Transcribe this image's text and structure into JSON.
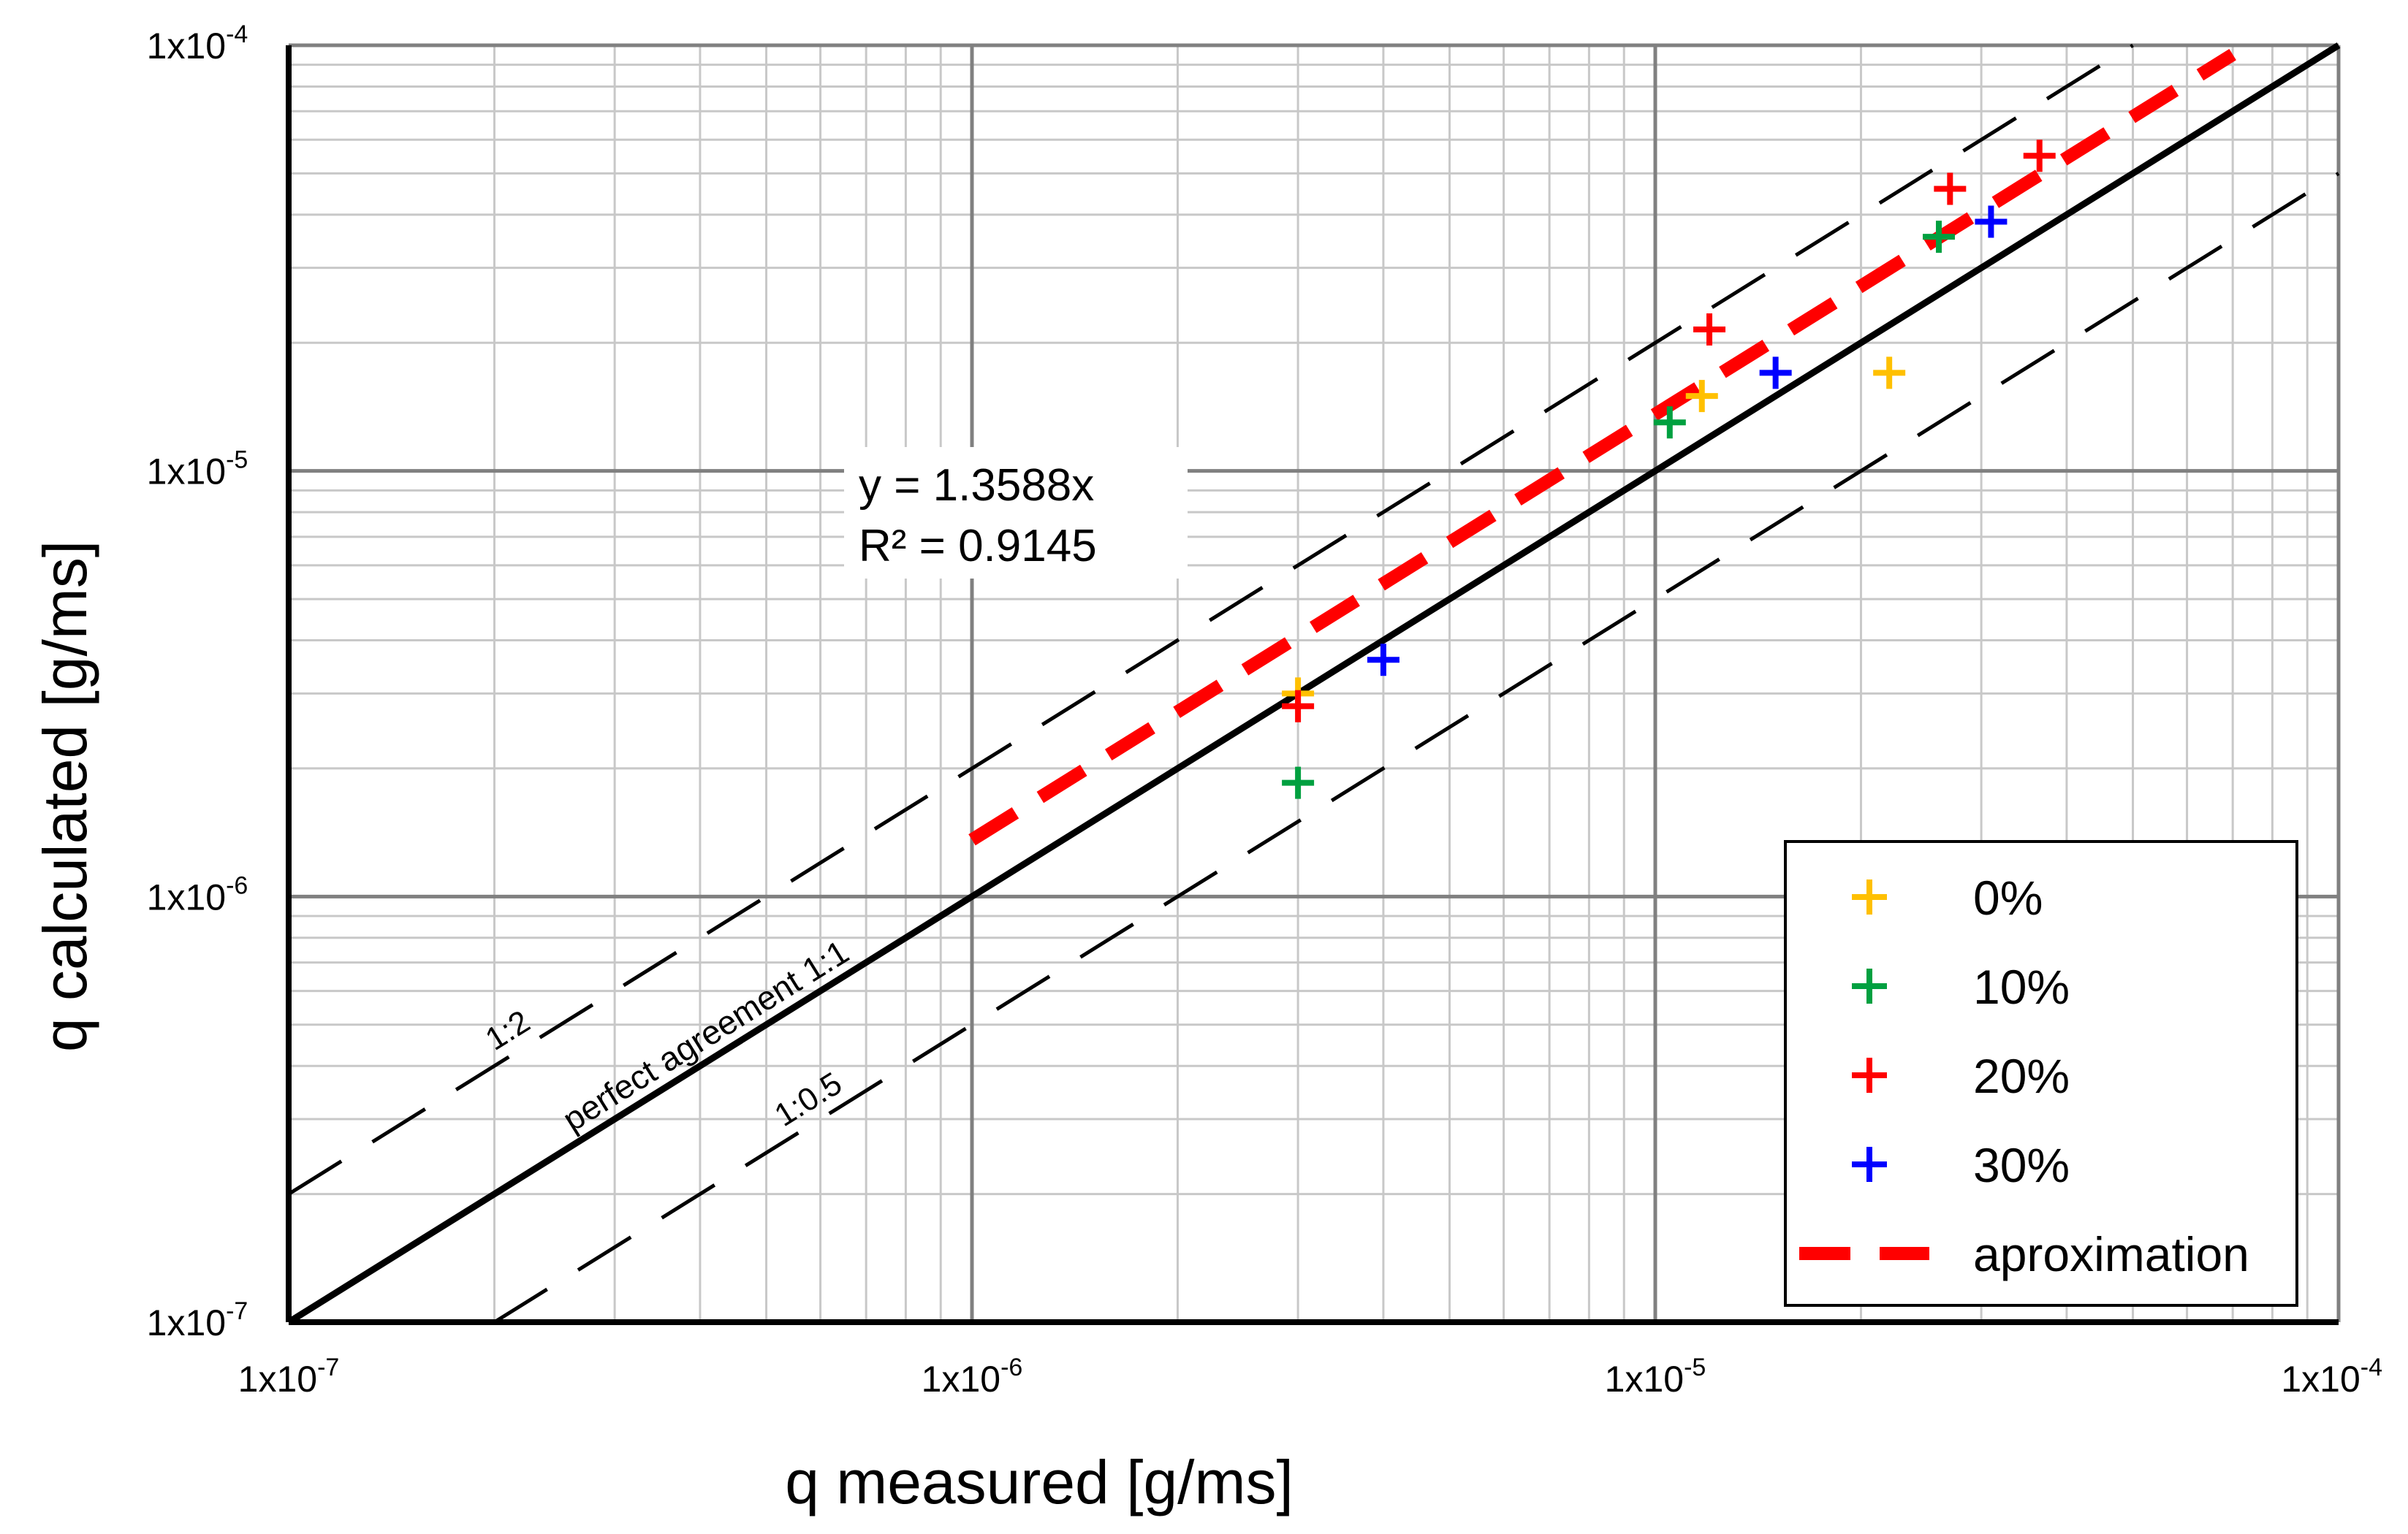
{
  "chart_data": {
    "type": "scatter",
    "xscale": "log",
    "yscale": "log",
    "xlim": [
      1e-07,
      0.0001
    ],
    "ylim": [
      1e-07,
      0.0001
    ],
    "xlabel": "q  measured [g/ms]",
    "ylabel": "q  calculated [g/ms]",
    "grid": true,
    "legend_position": "bottom-right",
    "x_ticks": [
      {
        "value": 1e-07,
        "base": "1x10",
        "exp": "-7"
      },
      {
        "value": 1e-06,
        "base": "1x10",
        "exp": "-6"
      },
      {
        "value": 1e-05,
        "base": "1x10",
        "exp": "-5"
      },
      {
        "value": 0.0001,
        "base": "1x10",
        "exp": "-4"
      }
    ],
    "y_ticks": [
      {
        "value": 1e-07,
        "base": "1x10",
        "exp": "-7"
      },
      {
        "value": 1e-06,
        "base": "1x10",
        "exp": "-6"
      },
      {
        "value": 1e-05,
        "base": "1x10",
        "exp": "-5"
      },
      {
        "value": 0.0001,
        "base": "1x10",
        "exp": "-4"
      }
    ],
    "series": [
      {
        "name": "0%",
        "color": "#FFC000",
        "marker": "plus",
        "points": [
          [
            3e-06,
            3e-06
          ],
          [
            1.17e-05,
            1.5e-05
          ],
          [
            2.2e-05,
            1.7e-05
          ]
        ]
      },
      {
        "name": "10%",
        "color": "#00A040",
        "marker": "plus",
        "points": [
          [
            3e-06,
            1.85e-06
          ],
          [
            1.05e-05,
            1.3e-05
          ],
          [
            2.6e-05,
            3.55e-05
          ]
        ]
      },
      {
        "name": "20%",
        "color": "#FF0000",
        "marker": "plus",
        "points": [
          [
            3e-06,
            2.8e-06
          ],
          [
            1.2e-05,
            2.15e-05
          ],
          [
            2.7e-05,
            4.6e-05
          ],
          [
            3.65e-05,
            5.5e-05
          ]
        ]
      },
      {
        "name": "30%",
        "color": "#0000FF",
        "marker": "plus",
        "points": [
          [
            4e-06,
            3.6e-06
          ],
          [
            1.5e-05,
            1.7e-05
          ],
          [
            3.1e-05,
            3.85e-05
          ]
        ]
      }
    ],
    "reference_lines": [
      {
        "label": "perfect agreement 1:1",
        "slope": 1,
        "style": "solid",
        "color": "#000000"
      },
      {
        "label": "1:2",
        "slope": 2,
        "style": "dashed",
        "color": "#000000"
      },
      {
        "label": "1:0.5",
        "slope": 0.5,
        "style": "dashed",
        "color": "#000000"
      }
    ],
    "fit": {
      "name": "aproximation",
      "slope": 1.3588,
      "x_range": [
        1e-06,
        7e-05
      ],
      "color": "#FF0000",
      "style": "dashed",
      "equation": "y = 1.3588x",
      "r2": "R² = 0.9145"
    }
  }
}
